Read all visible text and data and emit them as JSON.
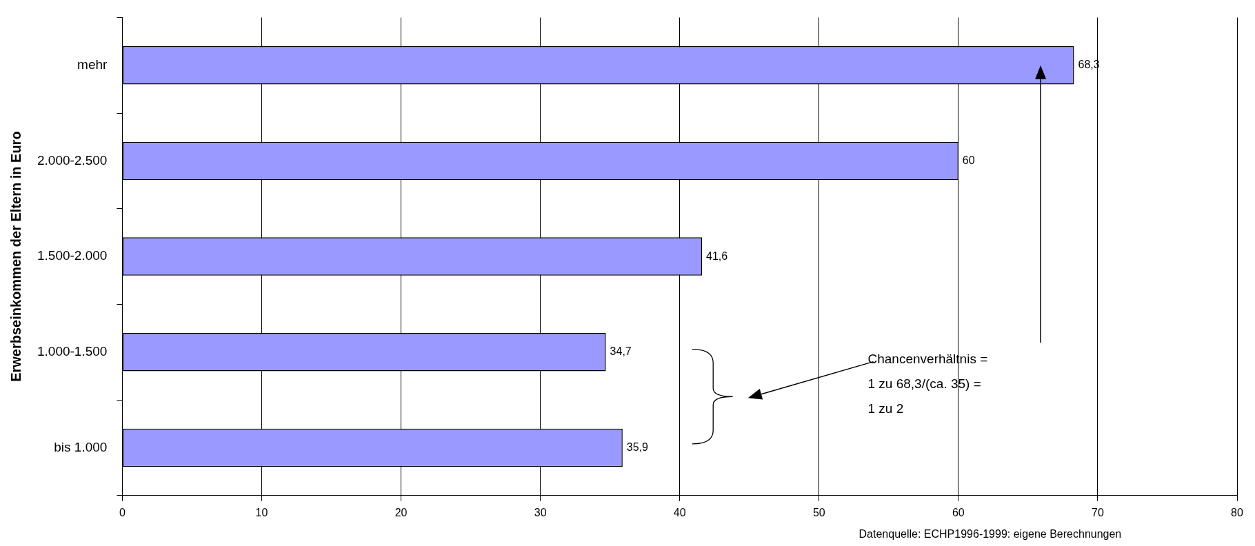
{
  "chart_data": {
    "type": "bar",
    "orientation": "horizontal",
    "ylabel": "Erwerbseinkommen der Eltern in Euro",
    "categories": [
      "mehr",
      "2.000-2.500",
      "1.500-2.000",
      "1.000-1.500",
      "bis 1.000"
    ],
    "values": [
      68.3,
      60,
      41.6,
      34.7,
      35.9
    ],
    "value_labels": [
      "68,3",
      "60",
      "41,6",
      "34,7",
      "35,9"
    ],
    "color": "#9999ff",
    "xlim": [
      0,
      80
    ],
    "xticks": [
      0,
      10,
      20,
      30,
      40,
      50,
      60,
      70,
      80
    ],
    "grid": "x",
    "legend": false,
    "annotations": [
      "Chancenverhältnis =\n1 zu 68,3/(ca. 35) =\n1 zu 2",
      "Datenquelle: ECHP1996-1999: eigene Berechnungen"
    ]
  }
}
